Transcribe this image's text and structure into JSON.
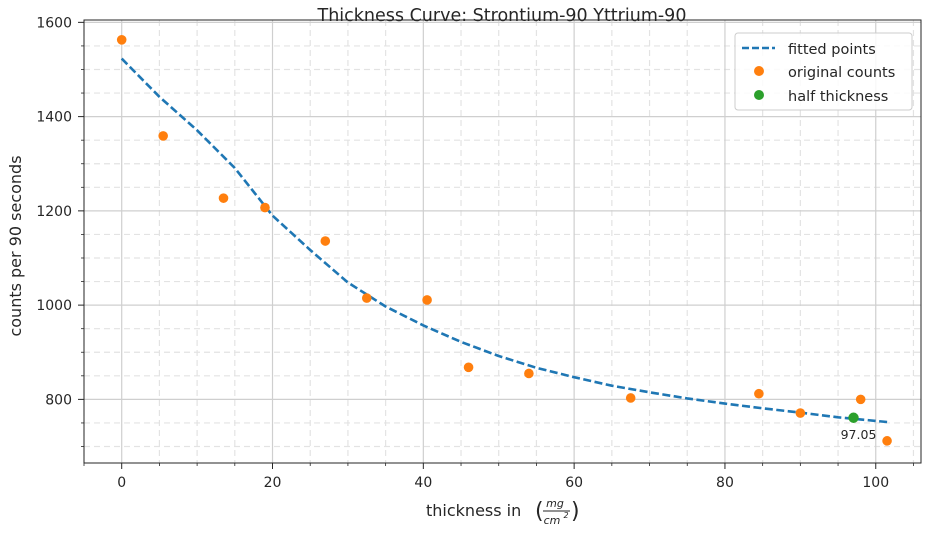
{
  "chart_data": {
    "type": "scatter",
    "title": "Thickness Curve: Strontium-90 Yttrium-90",
    "xlabel": "thickness in",
    "xlabel_unit": {
      "numerator": "mg",
      "denominator": "cm",
      "exponent": "2"
    },
    "ylabel": "counts per 90 seconds",
    "xlim": [
      -5,
      106
    ],
    "ylim": [
      665,
      1605
    ],
    "xticks": [
      0,
      20,
      40,
      60,
      80,
      100
    ],
    "yticks": [
      800,
      1000,
      1200,
      1400,
      1600
    ],
    "x_minor_step": 5,
    "y_minor_step": 50,
    "grid": true,
    "legend_position": "top-right",
    "colors": {
      "fitted": "#1f77b4",
      "original": "#ff7f0e",
      "half": "#2ca02c"
    },
    "series": [
      {
        "name": "fitted points",
        "kind": "dashed-line",
        "x": [
          0,
          5,
          10,
          15,
          20,
          25,
          30,
          35,
          40,
          45,
          50,
          55,
          60,
          65,
          70,
          75,
          80,
          85,
          90,
          95,
          101.5
        ],
        "y": [
          1523,
          1442,
          1371,
          1291,
          1190,
          1117,
          1048,
          997,
          957,
          922,
          892,
          867,
          847,
          829,
          815,
          802,
          791,
          781,
          772,
          762,
          752
        ]
      },
      {
        "name": "original counts",
        "kind": "points",
        "x": [
          0,
          5.5,
          13.5,
          19,
          27,
          32.5,
          40.5,
          46,
          54,
          67.5,
          84.5,
          90,
          98,
          101.5
        ],
        "y": [
          1563,
          1359,
          1227,
          1207,
          1136,
          1015,
          1011,
          868,
          855,
          803,
          812,
          771,
          800,
          712
        ]
      },
      {
        "name": "half thickness",
        "kind": "points",
        "x": [
          97.05
        ],
        "y": [
          761
        ]
      }
    ],
    "annotations": [
      {
        "text": "97.05",
        "x": 97.05,
        "y": 761
      }
    ]
  }
}
